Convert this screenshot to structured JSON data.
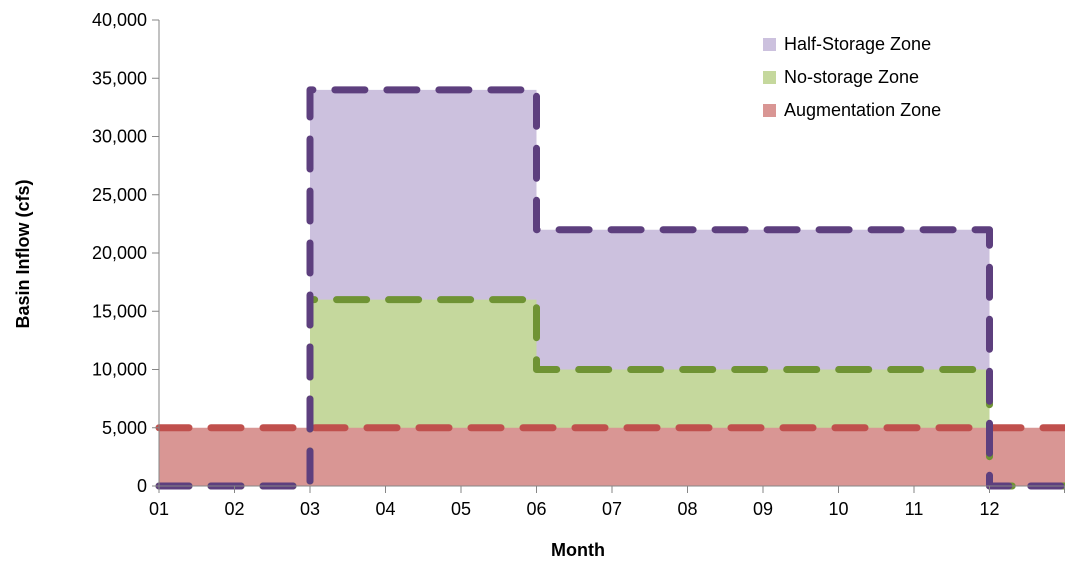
{
  "chart_data": {
    "type": "area",
    "title": "",
    "xlabel": "Month",
    "ylabel": "Basin Inflow (cfs)",
    "x_tick_labels": [
      "01",
      "02",
      "03",
      "04",
      "05",
      "06",
      "07",
      "08",
      "09",
      "10",
      "11",
      "12"
    ],
    "y_tick_labels": [
      "0",
      "5,000",
      "10,000",
      "15,000",
      "20,000",
      "25,000",
      "30,000",
      "35,000",
      "40,000"
    ],
    "xlim": [
      1,
      13
    ],
    "ylim": [
      0,
      40000
    ],
    "y_ticks": [
      0,
      5000,
      10000,
      15000,
      20000,
      25000,
      30000,
      35000,
      40000
    ],
    "grid": false,
    "legend_position": "top-right",
    "step": true,
    "series": [
      {
        "name": "Half-Storage Zone",
        "fill_color": "#ccc1de",
        "line_color": "#5d3f7e",
        "x": [
          1,
          3,
          6,
          12,
          13
        ],
        "values": [
          0,
          34000,
          22000,
          0,
          0
        ]
      },
      {
        "name": "No-storage Zone",
        "fill_color": "#c5d89d",
        "line_color": "#6f9334",
        "x": [
          1,
          3,
          6,
          12,
          13
        ],
        "values": [
          0,
          16000,
          10000,
          0,
          0
        ]
      },
      {
        "name": "Augmentation Zone",
        "fill_color": "#d99694",
        "line_color": "#c0504d",
        "x": [
          1,
          13
        ],
        "values": [
          5000,
          5000
        ]
      }
    ],
    "legend_entries": [
      "Half-Storage Zone",
      "No-storage Zone",
      "Augmentation Zone"
    ]
  }
}
